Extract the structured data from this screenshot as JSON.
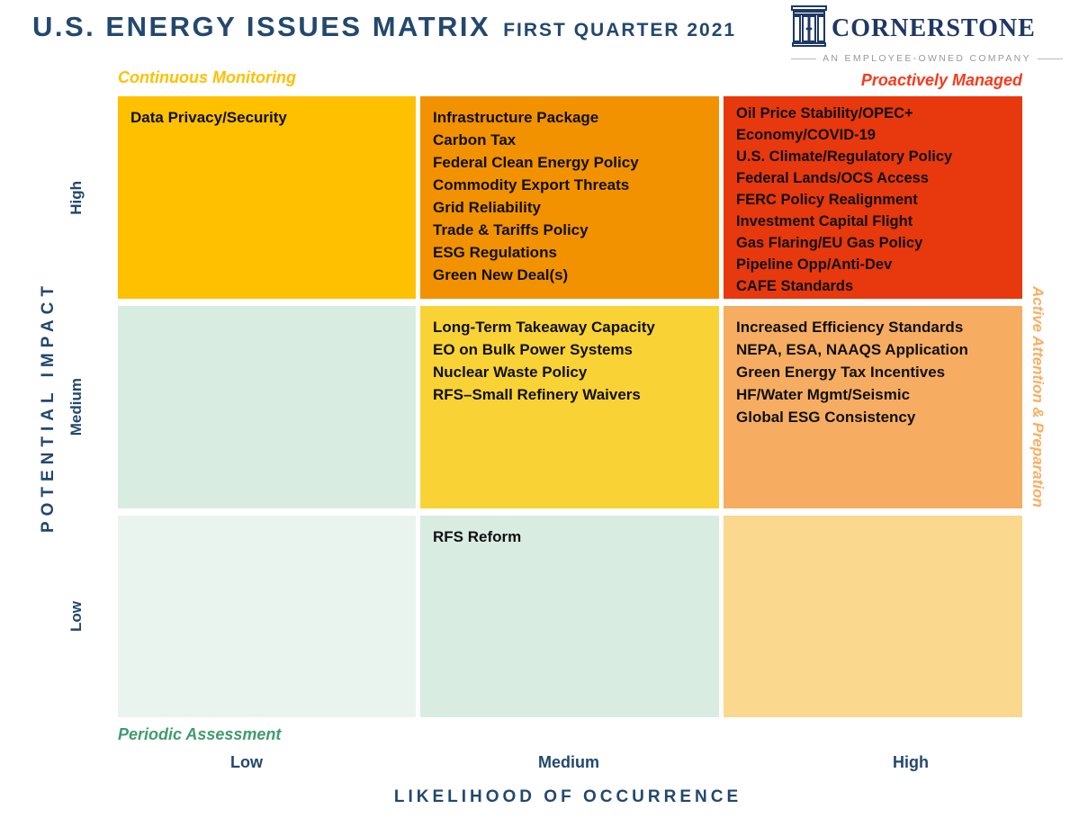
{
  "header": {
    "title_main": "U.S. ENERGY ISSUES MATRIX",
    "title_sub": "FIRST QUARTER 2021"
  },
  "logo": {
    "name": "CORNERSTONE",
    "tagline": "AN EMPLOYEE-OWNED COMPANY",
    "icon": "building-columns-icon",
    "name_color": "#1F3864",
    "tagline_color": "#999999"
  },
  "colors": {
    "navy": "#23486E",
    "gold": "#FFC000",
    "orange": "#F29200",
    "red": "#E8380D",
    "yellow": "#F9D335",
    "light_orange": "#F6AD62",
    "mint": "#D9ECE2",
    "pale_mint": "#EAF4EE",
    "tan": "#FAD88D"
  },
  "quadrant_labels": {
    "top_left": {
      "text": "Continuous Monitoring",
      "color": "#FFC000"
    },
    "top_right": {
      "text": "Proactively Managed",
      "color": "#F53B1C"
    },
    "bottom_left": {
      "text": "Periodic Assessment",
      "color": "#429A71"
    },
    "right": {
      "text": "Active Attention & Preparation",
      "color": "#F9AE63"
    }
  },
  "chart_data": {
    "type": "heatmap",
    "title": "U.S. Energy Issues Matrix — First Quarter 2021",
    "x_axis": {
      "label": "LIKELIHOOD OF OCCURRENCE",
      "categories": [
        "Low",
        "Medium",
        "High"
      ]
    },
    "y_axis": {
      "label": "POTENTIAL IMPACT",
      "categories": [
        "High",
        "Medium",
        "Low"
      ]
    },
    "legend_position": "corners",
    "grid": false,
    "cells": [
      {
        "impact": "High",
        "likelihood": "Low",
        "color": "#FFC000",
        "items": [
          "Data Privacy/Security"
        ]
      },
      {
        "impact": "High",
        "likelihood": "Medium",
        "color": "#F29200",
        "items": [
          "Infrastructure Package",
          "Carbon Tax",
          "Federal Clean Energy Policy",
          "Commodity Export Threats",
          "Grid Reliability",
          "Trade & Tariffs Policy",
          "ESG Regulations",
          "Green New Deal(s)"
        ]
      },
      {
        "impact": "High",
        "likelihood": "High",
        "color": "#E8380D",
        "items": [
          "Oil Price Stability/OPEC+",
          "Economy/COVID-19",
          "U.S. Climate/Regulatory Policy",
          "Federal Lands/OCS Access",
          "FERC Policy Realignment",
          "Investment Capital Flight",
          "Gas Flaring/EU Gas Policy",
          "Pipeline Opp/Anti-Dev",
          "CAFE Standards"
        ]
      },
      {
        "impact": "Medium",
        "likelihood": "Low",
        "color": "#D9ECE2",
        "items": []
      },
      {
        "impact": "Medium",
        "likelihood": "Medium",
        "color": "#F9D335",
        "items": [
          "Long-Term Takeaway Capacity",
          "EO on Bulk Power Systems",
          "Nuclear Waste Policy",
          "RFS–Small Refinery Waivers"
        ]
      },
      {
        "impact": "Medium",
        "likelihood": "High",
        "color": "#F6AD62",
        "items": [
          "Increased Efficiency Standards",
          "NEPA, ESA, NAAQS Application",
          "Green Energy Tax Incentives",
          "HF/Water Mgmt/Seismic",
          "Global ESG Consistency"
        ]
      },
      {
        "impact": "Low",
        "likelihood": "Low",
        "color": "#EAF4EE",
        "items": []
      },
      {
        "impact": "Low",
        "likelihood": "Medium",
        "color": "#D9ECE2",
        "items": [
          "RFS Reform"
        ]
      },
      {
        "impact": "Low",
        "likelihood": "High",
        "color": "#FAD88D",
        "items": []
      }
    ]
  }
}
